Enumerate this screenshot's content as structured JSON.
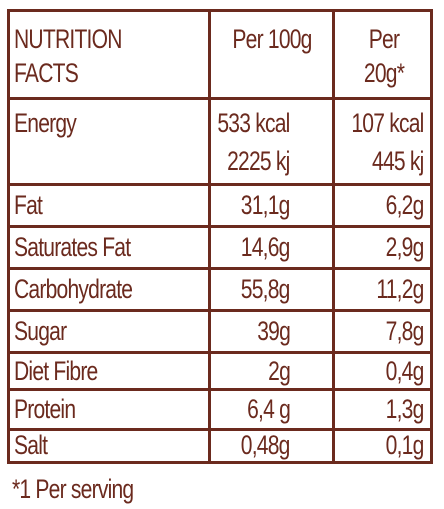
{
  "header": {
    "title_line1": "NUTRITION",
    "title_line2": "FACTS",
    "col_per100": "Per 100g",
    "col_per20": "Per 20g*"
  },
  "rows": [
    {
      "label": "Energy",
      "per100_line1": "533 kcal",
      "per100_line2": "2225 kj",
      "per20_line1": "107 kcal",
      "per20_line2": "445 kj"
    },
    {
      "label": "Fat",
      "per100": "31,1g",
      "per20": "6,2g"
    },
    {
      "label": "Saturates Fat",
      "per100": "14,6g",
      "per20": "2,9g"
    },
    {
      "label": "Carbohydrate",
      "per100": "55,8g",
      "per20": "11,2g"
    },
    {
      "label": "Sugar",
      "per100": "39g",
      "per20": "7,8g"
    },
    {
      "label": "Diet Fibre",
      "per100": "2g",
      "per20": "0,4g"
    },
    {
      "label": "Protein",
      "per100": "6,4 g",
      "per20": "1,3g"
    },
    {
      "label": "Salt",
      "per100": "0,48g",
      "per20": "0,1g"
    }
  ],
  "footnote": "*1 Per serving",
  "colors": {
    "text": "#6b2a1e",
    "border": "#6b2a1e",
    "background": "#ffffff"
  }
}
